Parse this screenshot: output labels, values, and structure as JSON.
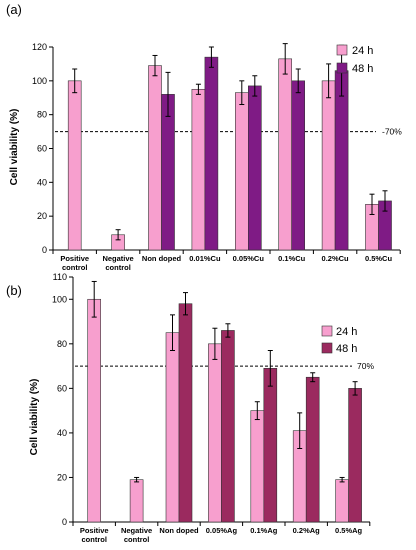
{
  "chart_data": [
    {
      "type": "bar",
      "panel_label": "(a)",
      "ylabel": "Cell viability (%)",
      "ylim": [
        0,
        120
      ],
      "yticks": [
        0,
        20,
        40,
        60,
        80,
        100,
        120
      ],
      "categories": [
        "Positive control",
        "Negative control",
        "Non doped",
        "0.01%Cu",
        "0.05%Cu",
        "0.1%Cu",
        "0.2%Cu",
        "0.5%Cu"
      ],
      "series": [
        {
          "name": "24 h",
          "color": "#f79fce",
          "values": [
            100,
            9,
            109,
            95,
            93,
            113,
            100,
            27
          ],
          "errors": [
            7,
            3,
            6,
            3,
            7,
            9,
            10,
            6
          ]
        },
        {
          "name": "48 h",
          "color": "#7f1b85",
          "values": [
            null,
            null,
            92,
            114,
            97,
            100,
            106,
            29
          ],
          "errors": [
            null,
            null,
            13,
            6,
            6,
            7,
            15,
            6
          ]
        }
      ],
      "reference_line": {
        "value": 70,
        "label": "70%"
      },
      "legend_position": "top-right",
      "grid": false
    },
    {
      "type": "bar",
      "panel_label": "(b)",
      "ylabel": "Cell viability (%)",
      "ylim": [
        0,
        110
      ],
      "yticks": [
        0,
        20,
        40,
        60,
        80,
        100,
        110
      ],
      "categories": [
        "Positive control",
        "Negative control",
        "Non doped",
        "0.05%Ag",
        "0.1%Ag",
        "0.2%Ag",
        "0.5%Ag"
      ],
      "series": [
        {
          "name": "24 h",
          "color": "#f79fce",
          "values": [
            100,
            19,
            85,
            80,
            50,
            41,
            19
          ],
          "errors": [
            8,
            1,
            8,
            7,
            4,
            8,
            1
          ]
        },
        {
          "name": "48 h",
          "color": "#9b2a5f",
          "values": [
            null,
            null,
            98,
            86,
            69,
            65,
            60
          ],
          "errors": [
            null,
            null,
            5,
            3,
            8,
            2,
            3
          ]
        }
      ],
      "reference_line": {
        "value": 70,
        "label": "70%"
      },
      "legend_position": "top-right",
      "grid": false
    }
  ]
}
